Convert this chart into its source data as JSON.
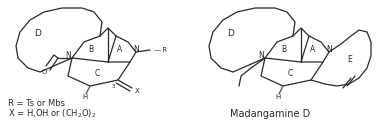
{
  "background_color": "#ffffff",
  "title_right": "Madangamine D",
  "annotation_r": "R = Ts or Mbs",
  "annotation_x": "X = H,OH or (CH₂O)₂",
  "font_size_label": 6.5,
  "font_size_ring": 5.5,
  "font_size_title": 7.0,
  "font_size_annot": 6.0,
  "line_color": "#2a2a2a",
  "line_width": 0.9
}
